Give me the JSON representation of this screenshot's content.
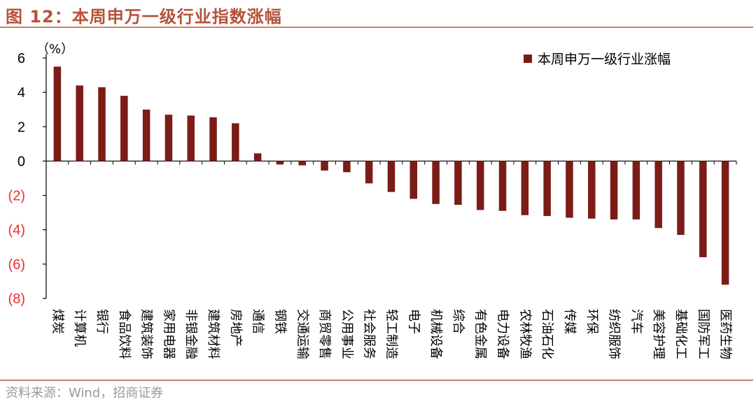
{
  "figure": {
    "title": "图 12：本周申万一级行业指数涨幅",
    "source": "资料来源：Wind，招商证券"
  },
  "chart_data": {
    "type": "bar",
    "unit_label": "（%）",
    "legend": "本周申万一级行业涨幅",
    "legend_position": "top-right",
    "ylim": [
      -8,
      6
    ],
    "yticks": [
      6,
      4,
      2,
      0,
      -2,
      -4,
      -6,
      -8
    ],
    "ytick_labels": [
      "6",
      "4",
      "2",
      "0",
      "(2)",
      "(4)",
      "(6)",
      "(8)"
    ],
    "categories": [
      "煤炭",
      "计算机",
      "银行",
      "食品饮料",
      "建筑装饰",
      "家用电器",
      "非银金融",
      "建筑材料",
      "房地产",
      "通信",
      "钢铁",
      "交通运输",
      "商贸零售",
      "公用事业",
      "社会服务",
      "轻工制造",
      "电子",
      "机械设备",
      "综合",
      "有色金属",
      "电力设备",
      "农林牧渔",
      "石油石化",
      "传媒",
      "环保",
      "纺织服饰",
      "汽车",
      "美容护理",
      "基础化工",
      "国防军工",
      "医药生物"
    ],
    "values": [
      5.5,
      4.4,
      4.3,
      3.8,
      3.0,
      2.7,
      2.65,
      2.55,
      2.2,
      0.45,
      -0.2,
      -0.25,
      -0.55,
      -0.65,
      -1.3,
      -1.8,
      -2.2,
      -2.5,
      -2.55,
      -2.85,
      -2.9,
      -3.15,
      -3.2,
      -3.3,
      -3.35,
      -3.4,
      -3.4,
      -3.9,
      -4.3,
      -5.6,
      -7.2
    ],
    "series_color": "#7b1c16"
  }
}
